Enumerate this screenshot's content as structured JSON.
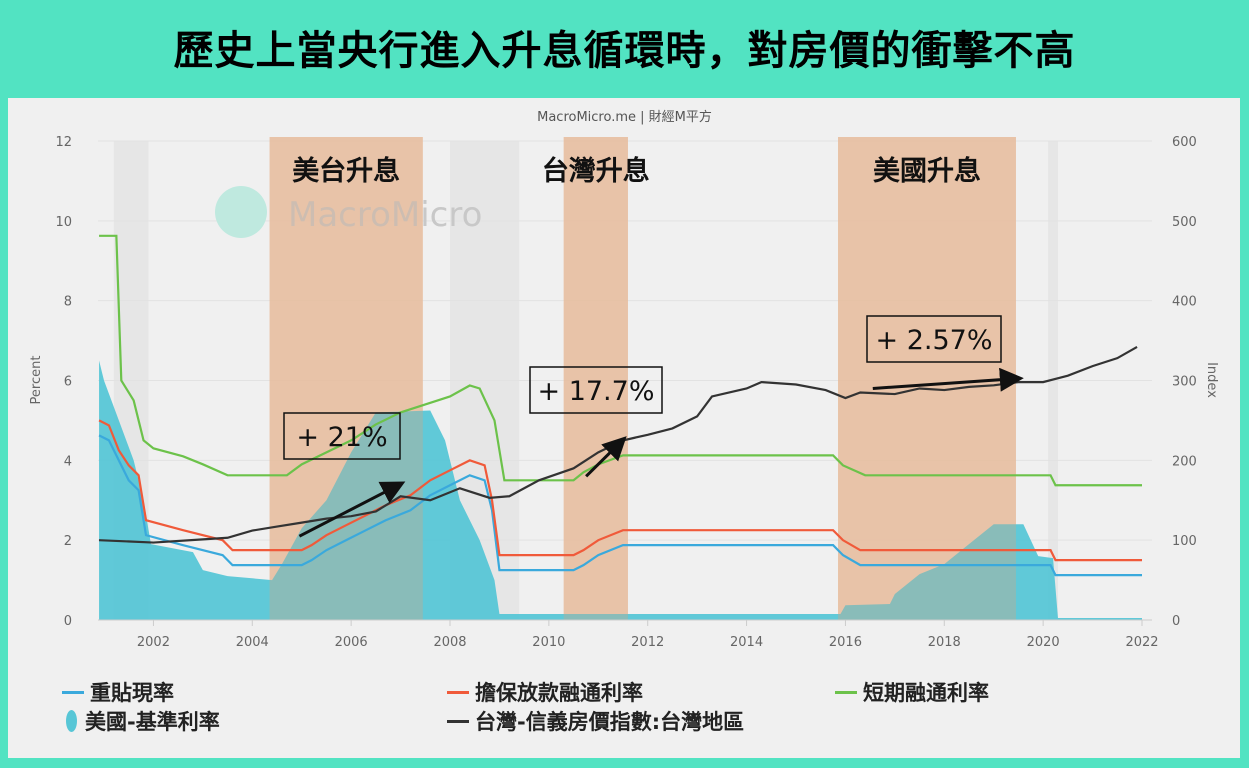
{
  "title": "歷史上當央行進入升息循環時，對房價的衝擊不高",
  "credit": "MacroMicro.me | 財經M平方",
  "watermark": "MacroMicro",
  "chart_data": {
    "type": "line",
    "xlim": [
      2000.9,
      2022.1
    ],
    "x_ticks": [
      "2002",
      "2004",
      "2006",
      "2008",
      "2010",
      "2012",
      "2014",
      "2016",
      "2018",
      "2020",
      "2022"
    ],
    "y_left": {
      "label": "Percent",
      "ylim": [
        0,
        12
      ],
      "ticks": [
        "0",
        "2",
        "4",
        "6",
        "8",
        "10",
        "12"
      ]
    },
    "y_right": {
      "label": "Index",
      "ylim": [
        0,
        600
      ],
      "ticks": [
        "0",
        "100",
        "200",
        "300",
        "400",
        "500",
        "600"
      ]
    },
    "shaded_periods": [
      {
        "label": "美台升息",
        "from": 2004.35,
        "to": 2007.45
      },
      {
        "label": "台灣升息",
        "from": 2010.3,
        "to": 2011.6
      },
      {
        "label": "美國升息",
        "from": 2015.85,
        "to": 2019.45
      }
    ],
    "annotations": [
      {
        "text": "+ 21%",
        "arrow_from": [
          2005.5,
          2.1
        ],
        "arrow_to": [
          2008,
          3.4
        ]
      },
      {
        "text": "+ 17.7%",
        "arrow_from": [
          2011.3,
          3.6
        ],
        "arrow_to": [
          2012.5,
          4.5
        ]
      },
      {
        "text": "+ 2.57%",
        "arrow_from": [
          2017.1,
          5.8
        ],
        "arrow_to": [
          2020.5,
          6.05
        ]
      }
    ],
    "series": [
      {
        "name": "重貼現率",
        "color": "#3aa9dc",
        "axis": "left",
        "type": "step",
        "points": [
          [
            2000.9,
            4.625
          ],
          [
            2001.1,
            4.5
          ],
          [
            2001.3,
            4.0
          ],
          [
            2001.5,
            3.5
          ],
          [
            2001.7,
            3.25
          ],
          [
            2001.85,
            2.125
          ],
          [
            2002.6,
            1.875
          ],
          [
            2003.4,
            1.625
          ],
          [
            2003.6,
            1.375
          ],
          [
            2005.0,
            1.375
          ],
          [
            2005.2,
            1.5
          ],
          [
            2005.5,
            1.75
          ],
          [
            2005.9,
            2.0
          ],
          [
            2006.3,
            2.25
          ],
          [
            2006.7,
            2.5
          ],
          [
            2007.2,
            2.75
          ],
          [
            2007.6,
            3.125
          ],
          [
            2008.0,
            3.375
          ],
          [
            2008.4,
            3.625
          ],
          [
            2008.7,
            3.5
          ],
          [
            2008.85,
            2.75
          ],
          [
            2009.0,
            1.25
          ],
          [
            2010.5,
            1.25
          ],
          [
            2010.7,
            1.375
          ],
          [
            2011.0,
            1.625
          ],
          [
            2011.5,
            1.875
          ],
          [
            2015.75,
            1.875
          ],
          [
            2015.95,
            1.625
          ],
          [
            2016.3,
            1.375
          ],
          [
            2020.15,
            1.375
          ],
          [
            2020.25,
            1.125
          ],
          [
            2022.0,
            1.125
          ]
        ]
      },
      {
        "name": "擔保放款融通利率",
        "color": "#f05a3a",
        "axis": "left",
        "type": "step",
        "points": [
          [
            2000.9,
            5.0
          ],
          [
            2001.1,
            4.875
          ],
          [
            2001.3,
            4.25
          ],
          [
            2001.5,
            3.875
          ],
          [
            2001.7,
            3.625
          ],
          [
            2001.85,
            2.5
          ],
          [
            2002.6,
            2.25
          ],
          [
            2003.4,
            2.0
          ],
          [
            2003.6,
            1.75
          ],
          [
            2005.0,
            1.75
          ],
          [
            2005.2,
            1.875
          ],
          [
            2005.5,
            2.125
          ],
          [
            2005.9,
            2.375
          ],
          [
            2006.3,
            2.625
          ],
          [
            2006.7,
            2.875
          ],
          [
            2007.2,
            3.125
          ],
          [
            2007.6,
            3.5
          ],
          [
            2008.0,
            3.75
          ],
          [
            2008.4,
            4.0
          ],
          [
            2008.7,
            3.875
          ],
          [
            2008.85,
            3.0
          ],
          [
            2009.0,
            1.625
          ],
          [
            2010.5,
            1.625
          ],
          [
            2010.7,
            1.75
          ],
          [
            2011.0,
            2.0
          ],
          [
            2011.5,
            2.25
          ],
          [
            2015.75,
            2.25
          ],
          [
            2015.95,
            2.0
          ],
          [
            2016.3,
            1.75
          ],
          [
            2020.15,
            1.75
          ],
          [
            2020.25,
            1.5
          ],
          [
            2022.0,
            1.5
          ]
        ]
      },
      {
        "name": "短期融通利率",
        "color": "#6cc24a",
        "axis": "left",
        "type": "step",
        "points": [
          [
            2000.9,
            9.625
          ],
          [
            2001.25,
            9.625
          ],
          [
            2001.35,
            6.0
          ],
          [
            2001.6,
            5.5
          ],
          [
            2001.8,
            4.5
          ],
          [
            2002.0,
            4.3
          ],
          [
            2002.6,
            4.1
          ],
          [
            2003.0,
            3.9
          ],
          [
            2003.5,
            3.625
          ],
          [
            2004.7,
            3.625
          ],
          [
            2005.0,
            3.9
          ],
          [
            2005.5,
            4.2
          ],
          [
            2006.0,
            4.5
          ],
          [
            2006.5,
            4.9
          ],
          [
            2007.0,
            5.2
          ],
          [
            2007.5,
            5.4
          ],
          [
            2008.0,
            5.6
          ],
          [
            2008.4,
            5.875
          ],
          [
            2008.6,
            5.8
          ],
          [
            2008.9,
            5.0
          ],
          [
            2009.1,
            3.5
          ],
          [
            2010.5,
            3.5
          ],
          [
            2010.7,
            3.7
          ],
          [
            2011.0,
            3.9
          ],
          [
            2011.5,
            4.125
          ],
          [
            2015.75,
            4.125
          ],
          [
            2015.95,
            3.875
          ],
          [
            2016.4,
            3.625
          ],
          [
            2020.15,
            3.625
          ],
          [
            2020.25,
            3.375
          ],
          [
            2022.0,
            3.375
          ]
        ]
      },
      {
        "name": "美國-基準利率",
        "color": "#57c6d6",
        "axis": "left",
        "type": "area",
        "points": [
          [
            2000.9,
            6.5
          ],
          [
            2001.0,
            6.0
          ],
          [
            2001.3,
            5.0
          ],
          [
            2001.6,
            4.0
          ],
          [
            2001.8,
            3.0
          ],
          [
            2001.95,
            1.9
          ],
          [
            2002.8,
            1.7
          ],
          [
            2003.0,
            1.25
          ],
          [
            2003.5,
            1.1
          ],
          [
            2004.4,
            1.0
          ],
          [
            2004.6,
            1.4
          ],
          [
            2005.0,
            2.3
          ],
          [
            2005.5,
            3.0
          ],
          [
            2006.0,
            4.2
          ],
          [
            2006.5,
            5.2
          ],
          [
            2007.6,
            5.25
          ],
          [
            2007.9,
            4.5
          ],
          [
            2008.2,
            3.0
          ],
          [
            2008.6,
            2.0
          ],
          [
            2008.9,
            1.0
          ],
          [
            2009.0,
            0.15
          ],
          [
            2015.9,
            0.15
          ],
          [
            2016.0,
            0.37
          ],
          [
            2016.9,
            0.4
          ],
          [
            2017.0,
            0.65
          ],
          [
            2017.5,
            1.15
          ],
          [
            2018.0,
            1.4
          ],
          [
            2018.5,
            1.9
          ],
          [
            2019.0,
            2.4
          ],
          [
            2019.6,
            2.4
          ],
          [
            2019.9,
            1.6
          ],
          [
            2020.2,
            1.55
          ],
          [
            2020.3,
            0.05
          ],
          [
            2022.0,
            0.05
          ]
        ]
      },
      {
        "name": "台灣-信義房價指數:台灣地區",
        "color": "#333333",
        "axis": "right",
        "type": "line",
        "points": [
          [
            2000.9,
            100
          ],
          [
            2002.0,
            97
          ],
          [
            2003.0,
            101
          ],
          [
            2003.5,
            103
          ],
          [
            2004.0,
            112
          ],
          [
            2004.5,
            117
          ],
          [
            2005.0,
            122
          ],
          [
            2005.5,
            127
          ],
          [
            2006.0,
            130
          ],
          [
            2006.5,
            136
          ],
          [
            2007.0,
            155
          ],
          [
            2007.6,
            150
          ],
          [
            2008.2,
            165
          ],
          [
            2008.8,
            153
          ],
          [
            2009.2,
            155
          ],
          [
            2009.8,
            175
          ],
          [
            2010.5,
            190
          ],
          [
            2011.0,
            210
          ],
          [
            2011.5,
            225
          ],
          [
            2012.0,
            232
          ],
          [
            2012.5,
            240
          ],
          [
            2013.0,
            255
          ],
          [
            2013.3,
            280
          ],
          [
            2014.0,
            290
          ],
          [
            2014.3,
            298
          ],
          [
            2015.0,
            295
          ],
          [
            2015.6,
            288
          ],
          [
            2016.0,
            278
          ],
          [
            2016.3,
            285
          ],
          [
            2017.0,
            283
          ],
          [
            2017.5,
            290
          ],
          [
            2018.0,
            288
          ],
          [
            2018.5,
            292
          ],
          [
            2019.0,
            294
          ],
          [
            2019.5,
            298
          ],
          [
            2020.0,
            298
          ],
          [
            2020.5,
            306
          ],
          [
            2021.0,
            318
          ],
          [
            2021.5,
            328
          ],
          [
            2021.9,
            342
          ]
        ]
      }
    ]
  },
  "legend": [
    "重貼現率",
    "擔保放款融通利率",
    "短期融通利率",
    "美國-基準利率",
    "台灣-信義房價指數:台灣地區"
  ]
}
